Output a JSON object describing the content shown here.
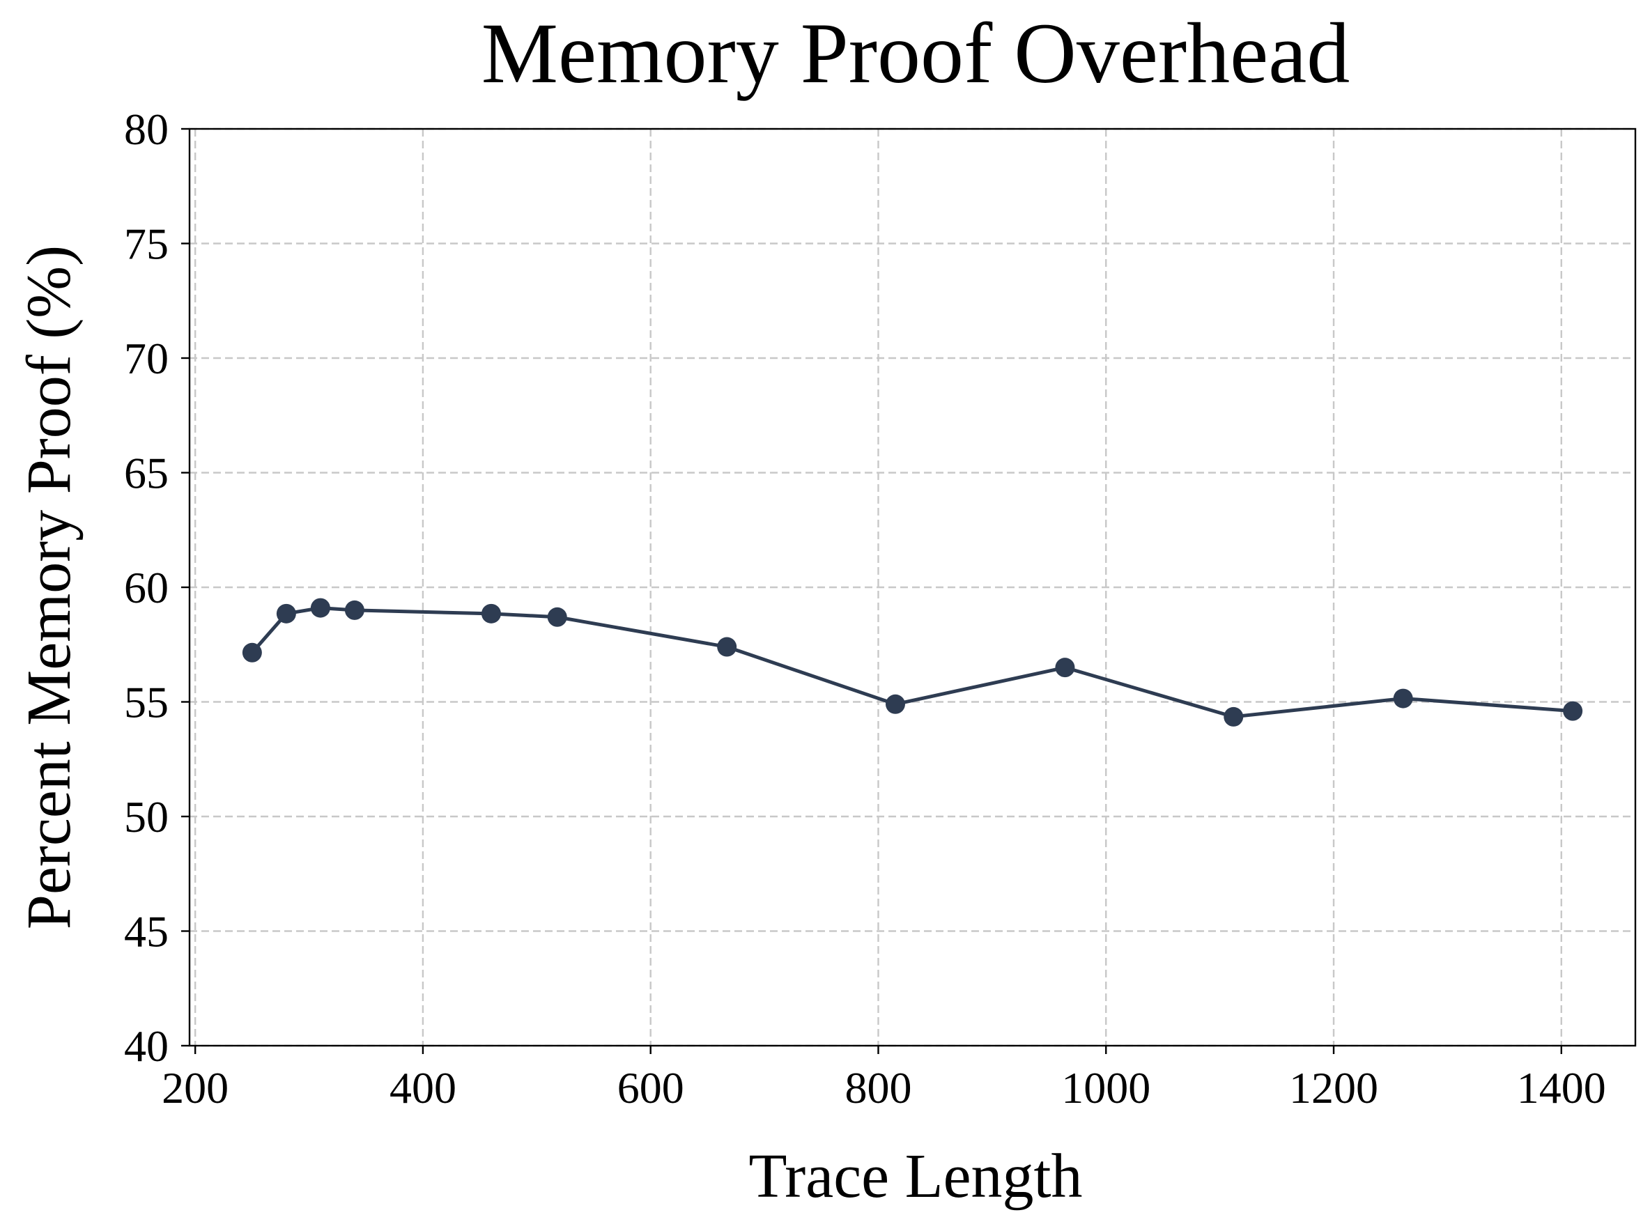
{
  "chart_data": {
    "type": "line",
    "title": "Memory Proof Overhead",
    "xlabel": "Trace Length",
    "ylabel": "Percent Memory Proof (%)",
    "xlim": [
      195,
      1465
    ],
    "ylim": [
      40,
      80
    ],
    "xticks": [
      200,
      400,
      600,
      800,
      1000,
      1200,
      1400
    ],
    "yticks": [
      40,
      45,
      50,
      55,
      60,
      65,
      70,
      75,
      80
    ],
    "grid": true,
    "series": [
      {
        "color": "#2e3c52",
        "marker": "circle",
        "x": [
          250,
          280,
          310,
          340,
          460,
          518,
          667,
          815,
          964,
          1112,
          1261,
          1410
        ],
        "y": [
          57.15,
          58.85,
          59.1,
          59.0,
          58.85,
          58.7,
          57.4,
          54.9,
          56.5,
          54.35,
          55.15,
          54.6
        ]
      }
    ]
  }
}
